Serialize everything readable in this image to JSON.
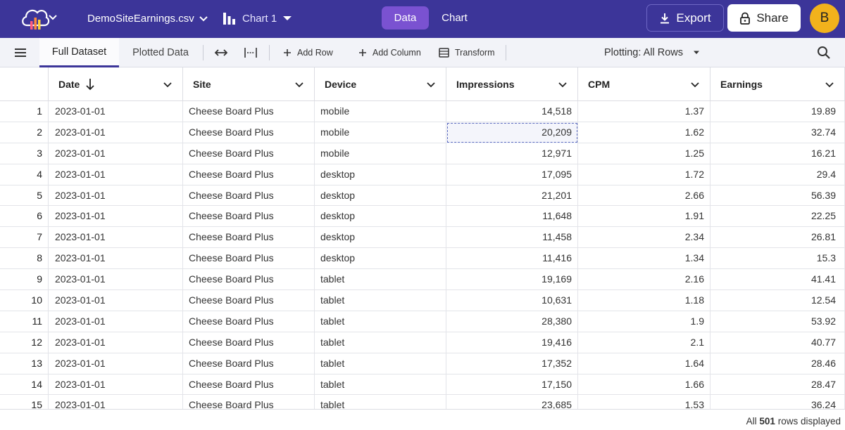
{
  "topbar": {
    "file_name": "DemoSiteEarnings.csv",
    "chart_name": "Chart 1",
    "mode_data": "Data",
    "mode_chart": "Chart",
    "export_label": "Export",
    "share_label": "Share",
    "avatar_initial": "B",
    "colors": {
      "bar": "#3c3599",
      "active_mode": "#7a52d1",
      "avatar": "#f2b21c"
    },
    "icons": [
      "logo-icon",
      "chevron-down-icon",
      "chart-icon",
      "download-icon",
      "lock-icon"
    ]
  },
  "toolbar": {
    "menu_icon": "hamburger-icon",
    "tabs": [
      "Full Dataset",
      "Plotted Data"
    ],
    "active_tab": "Full Dataset",
    "add_row": "Add Row",
    "add_column": "Add Column",
    "transform": "Transform",
    "plotting": "Plotting: All Rows",
    "icons": [
      "expand-horizontal-icon",
      "column-width-icon",
      "plus-icon",
      "table-icon",
      "search-icon"
    ]
  },
  "grid": {
    "columns": [
      "Date",
      "Site",
      "Device",
      "Impressions",
      "CPM",
      "Earnings"
    ],
    "sorted_column": "Date",
    "sort_direction": "descending-arrow",
    "rows": [
      {
        "idx": "1",
        "date": "2023-01-01",
        "site": "Cheese Board Plus",
        "device": "mobile",
        "impressions": "14,518",
        "cpm": "1.37",
        "earnings": "19.89"
      },
      {
        "idx": "2",
        "date": "2023-01-01",
        "site": "Cheese Board Plus",
        "device": "mobile",
        "impressions": "20,209",
        "cpm": "1.62",
        "earnings": "32.74"
      },
      {
        "idx": "3",
        "date": "2023-01-01",
        "site": "Cheese Board Plus",
        "device": "mobile",
        "impressions": "12,971",
        "cpm": "1.25",
        "earnings": "16.21"
      },
      {
        "idx": "4",
        "date": "2023-01-01",
        "site": "Cheese Board Plus",
        "device": "desktop",
        "impressions": "17,095",
        "cpm": "1.72",
        "earnings": "29.4"
      },
      {
        "idx": "5",
        "date": "2023-01-01",
        "site": "Cheese Board Plus",
        "device": "desktop",
        "impressions": "21,201",
        "cpm": "2.66",
        "earnings": "56.39"
      },
      {
        "idx": "6",
        "date": "2023-01-01",
        "site": "Cheese Board Plus",
        "device": "desktop",
        "impressions": "11,648",
        "cpm": "1.91",
        "earnings": "22.25"
      },
      {
        "idx": "7",
        "date": "2023-01-01",
        "site": "Cheese Board Plus",
        "device": "desktop",
        "impressions": "11,458",
        "cpm": "2.34",
        "earnings": "26.81"
      },
      {
        "idx": "8",
        "date": "2023-01-01",
        "site": "Cheese Board Plus",
        "device": "desktop",
        "impressions": "11,416",
        "cpm": "1.34",
        "earnings": "15.3"
      },
      {
        "idx": "9",
        "date": "2023-01-01",
        "site": "Cheese Board Plus",
        "device": "tablet",
        "impressions": "19,169",
        "cpm": "2.16",
        "earnings": "41.41"
      },
      {
        "idx": "10",
        "date": "2023-01-01",
        "site": "Cheese Board Plus",
        "device": "tablet",
        "impressions": "10,631",
        "cpm": "1.18",
        "earnings": "12.54"
      },
      {
        "idx": "11",
        "date": "2023-01-01",
        "site": "Cheese Board Plus",
        "device": "tablet",
        "impressions": "28,380",
        "cpm": "1.9",
        "earnings": "53.92"
      },
      {
        "idx": "12",
        "date": "2023-01-01",
        "site": "Cheese Board Plus",
        "device": "tablet",
        "impressions": "19,416",
        "cpm": "2.1",
        "earnings": "40.77"
      },
      {
        "idx": "13",
        "date": "2023-01-01",
        "site": "Cheese Board Plus",
        "device": "tablet",
        "impressions": "17,352",
        "cpm": "1.64",
        "earnings": "28.46"
      },
      {
        "idx": "14",
        "date": "2023-01-01",
        "site": "Cheese Board Plus",
        "device": "tablet",
        "impressions": "17,150",
        "cpm": "1.66",
        "earnings": "28.47"
      },
      {
        "idx": "15",
        "date": "2023-01-01",
        "site": "Cheese Board Plus",
        "device": "tablet",
        "impressions": "23,685",
        "cpm": "1.53",
        "earnings": "36.24"
      }
    ],
    "selected_cell": {
      "row": 2,
      "column": "Impressions"
    }
  },
  "status": {
    "prefix": "All",
    "count": "501",
    "suffix": "rows displayed"
  }
}
